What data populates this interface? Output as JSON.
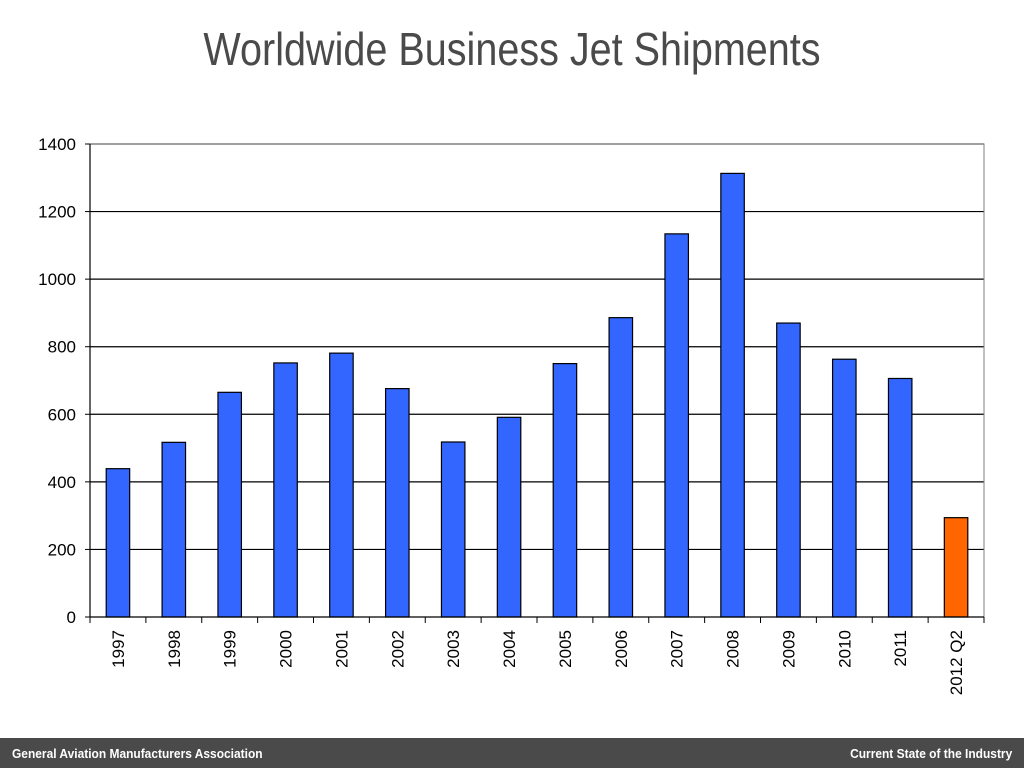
{
  "slide": {
    "title": "Worldwide Business Jet Shipments"
  },
  "footer": {
    "left_text": "General Aviation Manufacturers Association",
    "right_text": "Current State of the Industry"
  },
  "chart_data": {
    "type": "bar",
    "title": "",
    "xlabel": "",
    "ylabel": "",
    "categories": [
      "1997",
      "1998",
      "1999",
      "2000",
      "2001",
      "2002",
      "2003",
      "2004",
      "2005",
      "2006",
      "2007",
      "2008",
      "2009",
      "2010",
      "2011",
      "2012 Q2"
    ],
    "values": [
      439,
      517,
      665,
      752,
      781,
      676,
      518,
      591,
      750,
      886,
      1134,
      1313,
      870,
      763,
      706,
      294
    ],
    "ylim": [
      0,
      1400
    ],
    "yticks": [
      0,
      200,
      400,
      600,
      800,
      1000,
      1200,
      1400
    ],
    "grid": true,
    "legend": "none",
    "colors": {
      "bar": "#3366ff",
      "highlight_bar": "#ff6600",
      "bar_outline": "#000000",
      "highlight_category": "2012 Q2"
    }
  }
}
